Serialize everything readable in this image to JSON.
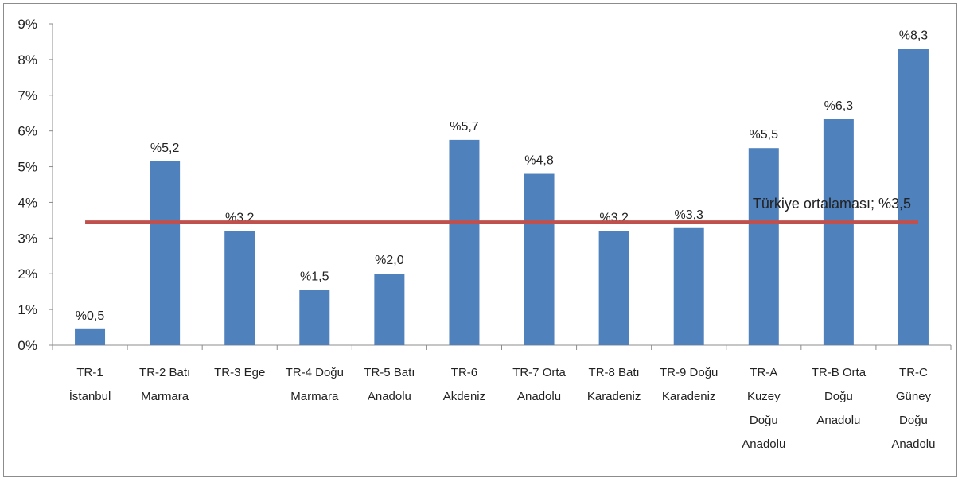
{
  "chart_data": {
    "type": "bar",
    "categories": [
      [
        "TR-1",
        "İstanbul"
      ],
      [
        "TR-2 Batı",
        "Marmara"
      ],
      [
        "TR-3 Ege"
      ],
      [
        "TR-4 Doğu",
        "Marmara"
      ],
      [
        "TR-5 Batı",
        "Anadolu"
      ],
      [
        "TR-6",
        "Akdeniz"
      ],
      [
        "TR-7 Orta",
        "Anadolu"
      ],
      [
        "TR-8 Batı",
        "Karadeniz"
      ],
      [
        "TR-9 Doğu",
        "Karadeniz"
      ],
      [
        "TR-A",
        "Kuzey",
        "Doğu",
        "Anadolu"
      ],
      [
        "TR-B Orta",
        "Doğu",
        "Anadolu"
      ],
      [
        "TR-C",
        "Güney",
        "Doğu",
        "Anadolu"
      ]
    ],
    "values": [
      0.45,
      5.15,
      3.2,
      1.55,
      2.0,
      5.75,
      4.8,
      3.2,
      3.28,
      5.52,
      6.33,
      8.3
    ],
    "data_labels": [
      "%0,5",
      "%5,2",
      "%3,2",
      "%1,5",
      "%2,0",
      "%5,7",
      "%4,8",
      "%3,2",
      "%3,3",
      "%5,5",
      "%6,3",
      "%8,3"
    ],
    "y_ticks": [
      "0%",
      "1%",
      "2%",
      "3%",
      "4%",
      "5%",
      "6%",
      "7%",
      "8%",
      "9%"
    ],
    "ylim": [
      0,
      9
    ],
    "reference_line": {
      "value": 3.45,
      "label": "Türkiye ortalaması; %3,5",
      "color": "#c0504d"
    },
    "bar_color": "#4f81bd",
    "title": "",
    "xlabel": "",
    "ylabel": "",
    "grid": false,
    "legend": "none"
  }
}
